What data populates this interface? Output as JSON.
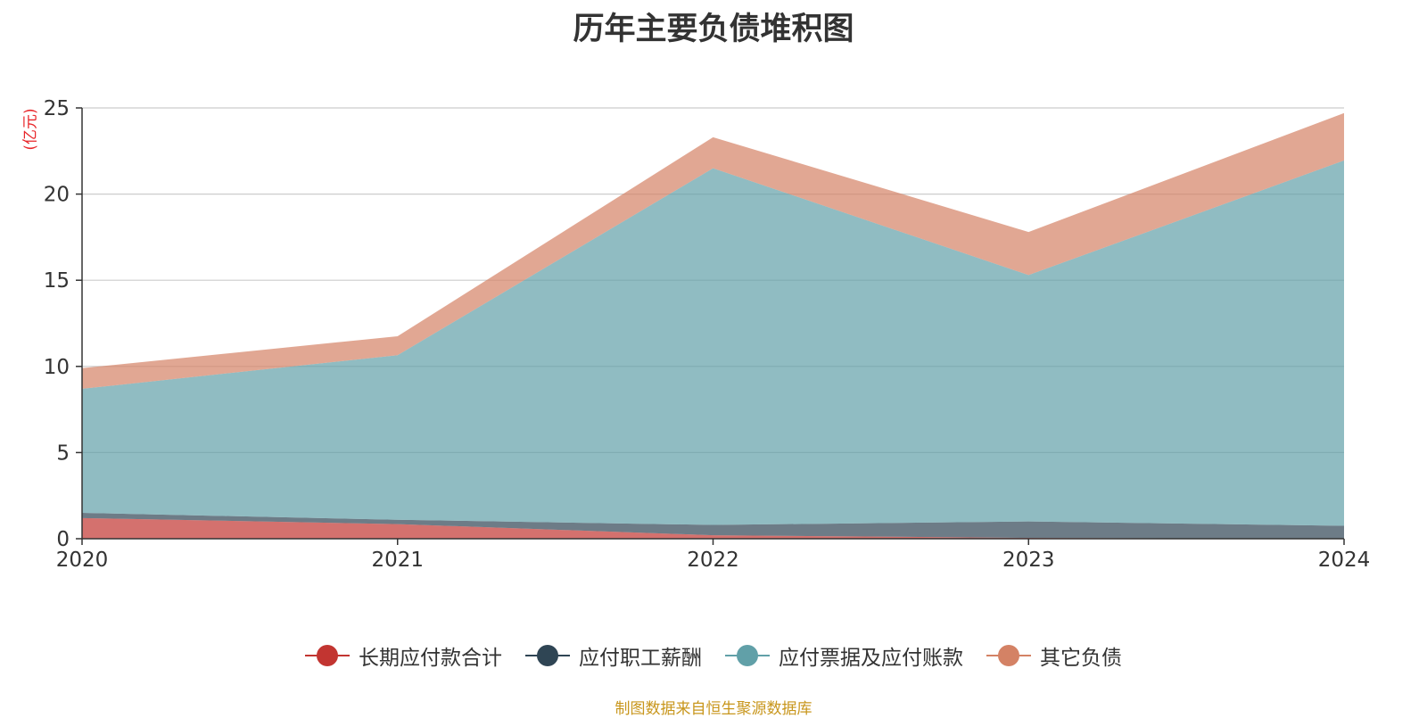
{
  "chart_data": {
    "type": "area",
    "stacked": true,
    "title": "历年主要负债堆积图",
    "unit_label": "(亿元)",
    "categories": [
      "2020",
      "2021",
      "2022",
      "2023",
      "2024"
    ],
    "ylim": [
      0,
      25
    ],
    "yticks": [
      "0",
      "5",
      "10",
      "15",
      "20",
      "25"
    ],
    "grid": true,
    "legend_position": "bottom",
    "series": [
      {
        "name": "长期应付款合计",
        "color": "#c23531",
        "values": [
          1.2,
          0.85,
          0.2,
          0.05,
          0.0
        ]
      },
      {
        "name": "应付职工薪酬",
        "color": "#2f4554",
        "values": [
          0.3,
          0.25,
          0.6,
          0.95,
          0.75
        ]
      },
      {
        "name": "应付票据及应付账款",
        "color": "#61a0a8",
        "values": [
          7.2,
          9.55,
          20.7,
          14.3,
          21.2
        ]
      },
      {
        "name": "其它负债",
        "color": "#d48265",
        "values": [
          1.2,
          1.1,
          1.8,
          2.5,
          2.75
        ]
      }
    ],
    "source_note": "制图数据来自恒生聚源数据库"
  }
}
